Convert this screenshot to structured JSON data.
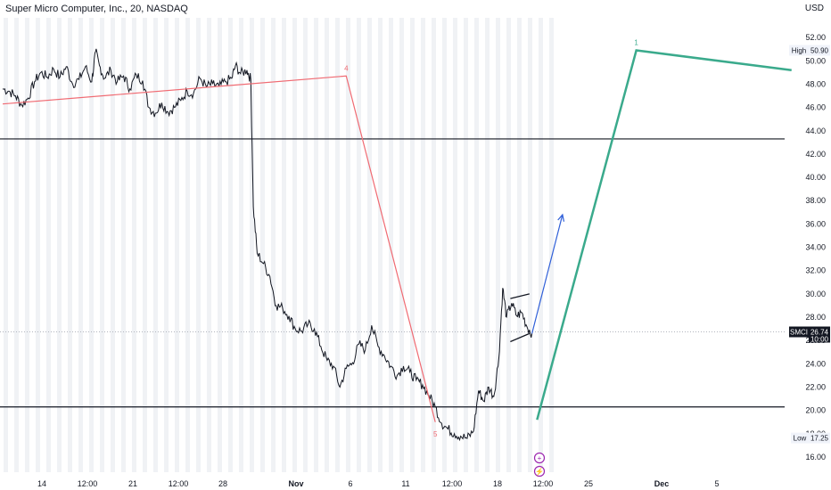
{
  "header": {
    "symbol_title": "Super Micro Computer, Inc., 20, NASDAQ",
    "currency": "USD"
  },
  "colors": {
    "wave_red": "#f06a72",
    "wave_green": "#3aaa8c",
    "projection_blue": "#2f5fd8",
    "price_line": "#131722",
    "session_shade": "#f0f2f5",
    "level_line": "#131722",
    "marker_purple": "#9c27b0"
  },
  "chart_data": {
    "type": "line",
    "ylim": [
      15,
      53
    ],
    "y_ticks": [
      16,
      18,
      20,
      22,
      24,
      26,
      28,
      30,
      32,
      34,
      36,
      38,
      40,
      42,
      44,
      46,
      48,
      50,
      52
    ],
    "x_ticks": [
      {
        "label": "14",
        "bold": false
      },
      {
        "label": "12:00",
        "bold": false
      },
      {
        "label": "21",
        "bold": false
      },
      {
        "label": "12:00",
        "bold": false
      },
      {
        "label": "28",
        "bold": false
      },
      {
        "label": "Nov",
        "bold": true
      },
      {
        "label": "6",
        "bold": false
      },
      {
        "label": "11",
        "bold": false
      },
      {
        "label": "12:00",
        "bold": false
      },
      {
        "label": "18",
        "bold": false
      },
      {
        "label": "12:00",
        "bold": false
      },
      {
        "label": "25",
        "bold": false
      },
      {
        "label": "Dec",
        "bold": true
      },
      {
        "label": "5",
        "bold": false
      }
    ],
    "price_series": {
      "name": "SMCI",
      "points": [
        [
          0,
          47.6
        ],
        [
          0.5,
          47.4
        ],
        [
          1,
          47.0
        ],
        [
          1.5,
          46.2
        ],
        [
          2,
          46.8
        ],
        [
          2.5,
          48.2
        ],
        [
          3,
          49.0
        ],
        [
          3.5,
          48.6
        ],
        [
          4,
          49.3
        ],
        [
          4.5,
          48.6
        ],
        [
          5,
          49.5
        ],
        [
          5.5,
          48.0
        ],
        [
          6,
          48.4
        ],
        [
          6.5,
          49.5
        ],
        [
          7,
          48.2
        ],
        [
          7.3,
          50.8
        ],
        [
          7.6,
          49.6
        ],
        [
          8,
          48.5
        ],
        [
          8.5,
          49.2
        ],
        [
          9,
          48.2
        ],
        [
          9.5,
          48.7
        ],
        [
          10,
          47.6
        ],
        [
          10.5,
          48.8
        ],
        [
          11,
          48.3
        ],
        [
          11.5,
          46.0
        ],
        [
          12,
          45.5
        ],
        [
          12.5,
          46.4
        ],
        [
          13,
          45.6
        ],
        [
          13.5,
          46.0
        ],
        [
          14,
          46.6
        ],
        [
          14.5,
          47.4
        ],
        [
          15,
          47.2
        ],
        [
          15.5,
          48.5
        ],
        [
          16,
          47.8
        ],
        [
          16.5,
          48.0
        ],
        [
          17,
          47.8
        ],
        [
          17.5,
          48.2
        ],
        [
          18,
          48.5
        ],
        [
          18.3,
          49.6
        ],
        [
          18.7,
          48.9
        ],
        [
          19.2,
          49.2
        ],
        [
          19.5,
          48.4
        ],
        [
          19.7,
          37.5
        ],
        [
          20,
          33.5
        ],
        [
          20.5,
          32.6
        ],
        [
          21,
          31.5
        ],
        [
          21.5,
          29.0
        ],
        [
          22,
          28.8
        ],
        [
          22.5,
          28.1
        ],
        [
          23,
          27.0
        ],
        [
          23.5,
          26.8
        ],
        [
          24,
          27.4
        ],
        [
          24.5,
          27.0
        ],
        [
          25,
          25.5
        ],
        [
          25.5,
          24.3
        ],
        [
          26,
          23.8
        ],
        [
          26.5,
          22.0
        ],
        [
          27,
          23.6
        ],
        [
          27.5,
          24.1
        ],
        [
          28,
          25.7
        ],
        [
          28.5,
          25.2
        ],
        [
          29,
          27.3
        ],
        [
          29.5,
          25.5
        ],
        [
          30,
          24.7
        ],
        [
          30.5,
          23.8
        ],
        [
          31,
          23.0
        ],
        [
          31.5,
          23.8
        ],
        [
          32,
          23.3
        ],
        [
          32.5,
          22.6
        ],
        [
          33,
          22.2
        ],
        [
          33.5,
          21.3
        ],
        [
          34,
          20.3
        ],
        [
          34.5,
          18.9
        ],
        [
          35,
          18.4
        ],
        [
          35.5,
          18.0
        ],
        [
          36,
          17.8
        ],
        [
          36.5,
          17.6
        ],
        [
          37,
          18.2
        ],
        [
          37.4,
          21.7
        ],
        [
          37.8,
          20.8
        ],
        [
          38.2,
          22.0
        ],
        [
          38.6,
          21.2
        ],
        [
          39,
          24.5
        ],
        [
          39.3,
          30.5
        ],
        [
          39.6,
          28.0
        ],
        [
          40,
          29.2
        ],
        [
          40.4,
          28.1
        ],
        [
          40.8,
          28.4
        ],
        [
          41.2,
          27.2
        ],
        [
          41.6,
          26.6
        ]
      ]
    },
    "current_price": {
      "symbol": "SMCI",
      "value": "26.74",
      "countdown": "10:00",
      "level": 26.74
    },
    "high_tag": {
      "label": "High",
      "value": "50.90",
      "level": 50.9
    },
    "low_tag": {
      "label": "Low",
      "value": "17.25",
      "level": 17.25
    },
    "horizontal_levels": [
      43.3,
      20.3
    ],
    "wave_red": {
      "points": [
        [
          0,
          46.3
        ],
        [
          27,
          48.7
        ],
        [
          34,
          19.0
        ]
      ],
      "labels": [
        "4",
        "5"
      ]
    },
    "wave_green": {
      "points": [
        [
          42.0,
          19.2
        ],
        [
          49.8,
          50.9
        ],
        [
          62,
          49.2
        ]
      ],
      "label": "1"
    },
    "projection_blue": {
      "from": [
        41.6,
        26.6
      ],
      "to": [
        44.0,
        36.8
      ]
    },
    "flag_lines": [
      [
        [
          39.9,
          29.6
        ],
        [
          41.4,
          30.0
        ]
      ],
      [
        [
          39.9,
          25.9
        ],
        [
          41.4,
          26.6
        ]
      ]
    ]
  }
}
